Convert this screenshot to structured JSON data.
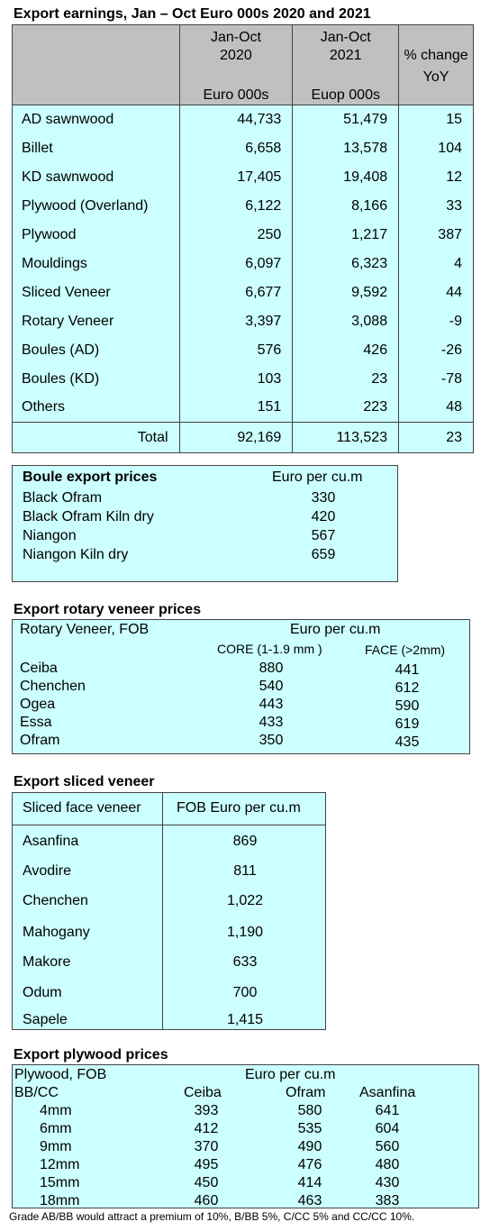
{
  "earnings": {
    "title": "Export earnings, Jan – Oct Euro 000s 2020 and 2021",
    "col1_l1": "Jan-Oct",
    "col1_l2": "2020",
    "col1_l3": "Euro 000s",
    "col2_l1": "Jan-Oct",
    "col2_l2": "2021",
    "col2_l3": "Euop 000s",
    "col3_l1": "% change",
    "col3_l3": "YoY",
    "rows": [
      {
        "name": "AD sawnwood",
        "v2020": "44,733",
        "v2021": "51,479",
        "pct": "15"
      },
      {
        "name": "Billet",
        "v2020": "6,658",
        "v2021": "13,578",
        "pct": "104"
      },
      {
        "name": "KD sawnwood",
        "v2020": "17,405",
        "v2021": "19,408",
        "pct": "12"
      },
      {
        "name": "Plywood (Overland)",
        "v2020": "6,122",
        "v2021": "8,166",
        "pct": "33"
      },
      {
        "name": "Plywood",
        "v2020": "250",
        "v2021": "1,217",
        "pct": "387"
      },
      {
        "name": "Mouldings",
        "v2020": "6,097",
        "v2021": "6,323",
        "pct": "4"
      },
      {
        "name": "Sliced Veneer",
        "v2020": "6,677",
        "v2021": "9,592",
        "pct": "44"
      },
      {
        "name": "Rotary Veneer",
        "v2020": "3,397",
        "v2021": "3,088",
        "pct": "-9"
      },
      {
        "name": "Boules (AD)",
        "v2020": "576",
        "v2021": "426",
        "pct": "-26"
      },
      {
        "name": "Boules (KD)",
        "v2020": "103",
        "v2021": "23",
        "pct": "-78"
      },
      {
        "name": "Others",
        "v2020": "151",
        "v2021": "223",
        "pct": "48"
      }
    ],
    "total": {
      "name": "Total",
      "v2020": "92,169",
      "v2021": "113,523",
      "pct": "23"
    }
  },
  "boule": {
    "title": "Boule export prices",
    "unit": "Euro per cu.m",
    "rows": [
      {
        "name": "Black Ofram",
        "price": "330"
      },
      {
        "name": "Black Ofram  Kiln dry",
        "price": "420"
      },
      {
        "name": "Niangon",
        "price": "567"
      },
      {
        "name": "Niangon Kiln dry",
        "price": "659"
      }
    ]
  },
  "rotary": {
    "title": "Export rotary veneer prices",
    "header_left": "Rotary Veneer,  FOB",
    "unit": "Euro  per cu.m",
    "core": "CORE (1-1.9 mm )",
    "face": "FACE (>2mm)",
    "rows": [
      {
        "name": "Ceiba",
        "core": "880",
        "face": "441"
      },
      {
        "name": "Chenchen",
        "core": "540",
        "face": "612"
      },
      {
        "name": "Ogea",
        "core": "443",
        "face": "590"
      },
      {
        "name": "Essa",
        "core": "433",
        "face": "619"
      },
      {
        "name": "Ofram",
        "core": "350",
        "face": "435"
      }
    ]
  },
  "sliced": {
    "title": "Export sliced veneer",
    "header_left": "Sliced face veneer",
    "header_right": "FOB Euro per cu.m",
    "rows": [
      {
        "name": "Asanfina",
        "price": "869"
      },
      {
        "name": "Avodire",
        "price": "811"
      },
      {
        "name": "Chenchen",
        "price": "1,022"
      },
      {
        "name": "Mahogany",
        "price": "1,190"
      },
      {
        "name": "Makore",
        "price": "633"
      },
      {
        "name": "Odum",
        "price": "700"
      },
      {
        "name": "Sapele",
        "price": "1,415"
      }
    ]
  },
  "plywood": {
    "title": "Export plywood prices",
    "header_left": "Plywood, FOB",
    "unit": "Euro per cu.m",
    "grade": "BB/CC",
    "col1": "Ceiba",
    "col2": "Ofram",
    "col3": "Asanfina",
    "rows": [
      {
        "size": "4mm",
        "ceiba": "393",
        "ofram": "580",
        "asanfina": "641"
      },
      {
        "size": "6mm",
        "ceiba": "412",
        "ofram": "535",
        "asanfina": "604"
      },
      {
        "size": "9mm",
        "ceiba": "370",
        "ofram": "490",
        "asanfina": "560"
      },
      {
        "size": "12mm",
        "ceiba": "495",
        "ofram": "476",
        "asanfina": "480"
      },
      {
        "size": "15mm",
        "ceiba": "450",
        "ofram": "414",
        "asanfina": "430"
      },
      {
        "size": "18mm",
        "ceiba": "460",
        "ofram": "463",
        "asanfina": "383"
      }
    ],
    "note": "Grade AB/BB would attract a premium of 10%, B/BB 5%, C/CC 5% and CC/CC 10%."
  }
}
